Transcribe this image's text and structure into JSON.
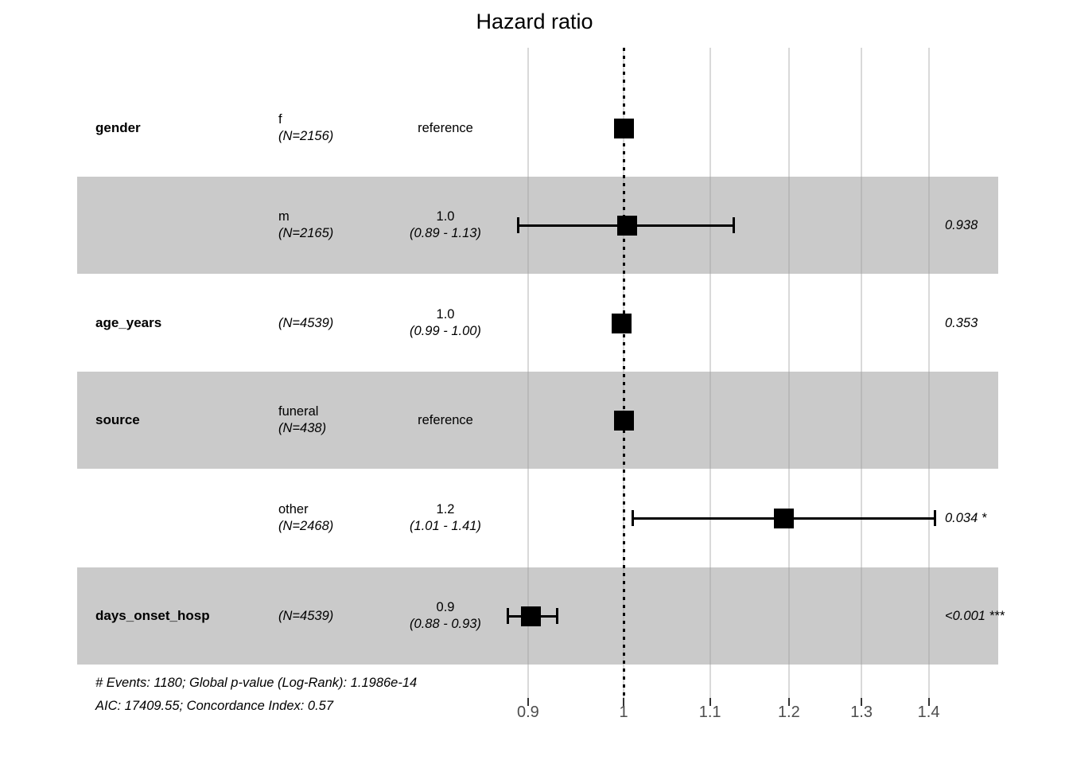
{
  "title": "Hazard ratio",
  "footer": {
    "line1": "# Events: 1180; Global p-value (Log-Rank): 1.1986e-14",
    "line2": "AIC: 17409.55; Concordance Index: 0.57"
  },
  "colors": {
    "band": "#cbcbcb",
    "gridline": "#d9d9d9",
    "axis_text": "#4d4d4d",
    "marker": "#000000"
  },
  "chart_data": {
    "type": "forest",
    "xscale": "log",
    "xticks": [
      0.9,
      1,
      1.1,
      1.2,
      1.3,
      1.4
    ],
    "xtick_labels": [
      "0.9",
      "1",
      "1.1",
      "1.2",
      "1.3",
      "1.4"
    ],
    "reference_line": 1,
    "xlim": [
      0.85,
      1.52
    ],
    "rows": [
      {
        "variable": "gender",
        "level": "f",
        "n_label": "(N=2156)",
        "estimate_label": "reference",
        "ci_label": "",
        "estimate": 1.0,
        "ci_low": null,
        "ci_high": null,
        "p_label": "",
        "shaded": false
      },
      {
        "variable": "",
        "level": "m",
        "n_label": "(N=2165)",
        "estimate_label": "1.0",
        "ci_label": "(0.89 - 1.13)",
        "estimate": 1.004,
        "ci_low": 0.89,
        "ci_high": 1.13,
        "p_label": "0.938",
        "shaded": true
      },
      {
        "variable": "age_years",
        "level": "",
        "n_label": "(N=4539)",
        "estimate_label": "1.0",
        "ci_label": "(0.99 - 1.00)",
        "estimate": 0.998,
        "ci_low": 0.99,
        "ci_high": 1.0,
        "p_label": "0.353",
        "shaded": false
      },
      {
        "variable": "source",
        "level": "funeral",
        "n_label": "(N=438)",
        "estimate_label": "reference",
        "ci_label": "",
        "estimate": 1.0,
        "ci_low": null,
        "ci_high": null,
        "p_label": "",
        "shaded": true
      },
      {
        "variable": "",
        "level": "other",
        "n_label": "(N=2468)",
        "estimate_label": "1.2",
        "ci_label": "(1.01 - 1.41)",
        "estimate": 1.193,
        "ci_low": 1.01,
        "ci_high": 1.41,
        "p_label": "0.034 *",
        "shaded": false
      },
      {
        "variable": "days_onset_hosp",
        "level": "",
        "n_label": "(N=4539)",
        "estimate_label": "0.9",
        "ci_label": "(0.88 - 0.93)",
        "estimate": 0.903,
        "ci_low": 0.88,
        "ci_high": 0.93,
        "p_label": "<0.001 ***",
        "shaded": true
      }
    ]
  }
}
